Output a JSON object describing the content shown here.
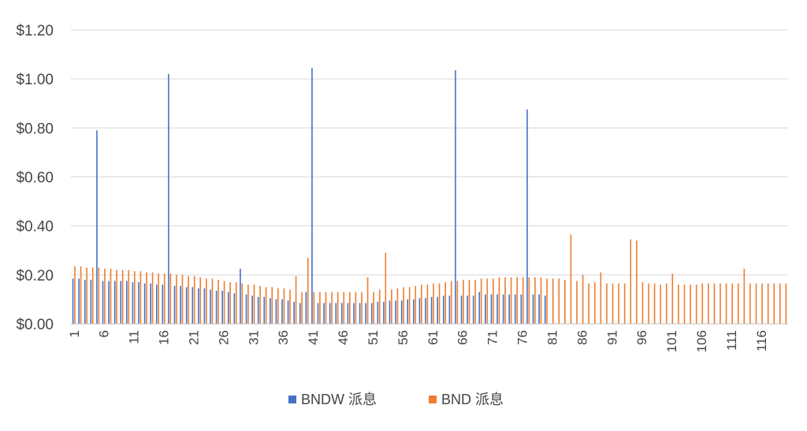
{
  "chart_data": {
    "type": "bar",
    "title": "",
    "xlabel": "",
    "ylabel": "",
    "ylim": [
      0,
      1.2
    ],
    "y_ticks": [
      "$0.00",
      "$0.20",
      "$0.40",
      "$0.60",
      "$0.80",
      "$1.00",
      "$1.20"
    ],
    "y_tick_values": [
      0,
      0.2,
      0.4,
      0.6,
      0.8,
      1.0,
      1.2
    ],
    "x_tick_labels": [
      "1",
      "6",
      "11",
      "16",
      "21",
      "26",
      "31",
      "36",
      "41",
      "46",
      "51",
      "56",
      "61",
      "66",
      "71",
      "76",
      "81",
      "86",
      "91",
      "96",
      "101",
      "106",
      "111",
      "116"
    ],
    "x_count": 120,
    "grid": true,
    "legend_position": "bottom",
    "colors": {
      "BNDW": "#4472c4",
      "BND": "#ed7d31"
    },
    "series": [
      {
        "name": "BNDW 派息",
        "values": [
          0.185,
          0.185,
          0.18,
          0.18,
          0.79,
          0.175,
          0.175,
          0.175,
          0.175,
          0.175,
          0.17,
          0.17,
          0.165,
          0.165,
          0.16,
          0.16,
          1.02,
          0.155,
          0.155,
          0.15,
          0.15,
          0.145,
          0.145,
          0.14,
          0.135,
          0.135,
          0.13,
          0.125,
          0.225,
          0.12,
          0.115,
          0.11,
          0.11,
          0.105,
          0.1,
          0.1,
          0.095,
          0.09,
          0.085,
          0.13,
          1.045,
          0.085,
          0.085,
          0.085,
          0.085,
          0.085,
          0.085,
          0.085,
          0.085,
          0.085,
          0.085,
          0.09,
          0.09,
          0.095,
          0.095,
          0.095,
          0.1,
          0.1,
          0.105,
          0.105,
          0.11,
          0.11,
          0.115,
          0.115,
          1.035,
          0.115,
          0.115,
          0.115,
          0.13,
          0.12,
          0.12,
          0.12,
          0.12,
          0.12,
          0.12,
          0.12,
          0.875,
          0.12,
          0.12,
          0.115
        ]
      },
      {
        "name": "BND 派息",
        "values": [
          0.235,
          0.235,
          0.23,
          0.23,
          0.23,
          0.225,
          0.225,
          0.22,
          0.22,
          0.22,
          0.215,
          0.215,
          0.21,
          0.21,
          0.205,
          0.205,
          0.205,
          0.2,
          0.2,
          0.195,
          0.195,
          0.19,
          0.185,
          0.185,
          0.18,
          0.175,
          0.17,
          0.17,
          0.165,
          0.16,
          0.16,
          0.155,
          0.15,
          0.15,
          0.145,
          0.145,
          0.14,
          0.195,
          0.13,
          0.27,
          0.13,
          0.13,
          0.13,
          0.13,
          0.13,
          0.13,
          0.13,
          0.13,
          0.13,
          0.19,
          0.13,
          0.14,
          0.29,
          0.14,
          0.145,
          0.15,
          0.15,
          0.155,
          0.16,
          0.16,
          0.165,
          0.165,
          0.17,
          0.175,
          0.175,
          0.18,
          0.18,
          0.18,
          0.185,
          0.185,
          0.185,
          0.19,
          0.19,
          0.19,
          0.19,
          0.19,
          0.19,
          0.19,
          0.19,
          0.185,
          0.185,
          0.185,
          0.18,
          0.365,
          0.175,
          0.2,
          0.165,
          0.17,
          0.21,
          0.165,
          0.165,
          0.165,
          0.165,
          0.345,
          0.34,
          0.17,
          0.165,
          0.165,
          0.16,
          0.165,
          0.205,
          0.16,
          0.16,
          0.16,
          0.16,
          0.165,
          0.165,
          0.165,
          0.165,
          0.165,
          0.165,
          0.165,
          0.225,
          0.165,
          0.165,
          0.165,
          0.165,
          0.165,
          0.165,
          0.165
        ]
      }
    ]
  }
}
